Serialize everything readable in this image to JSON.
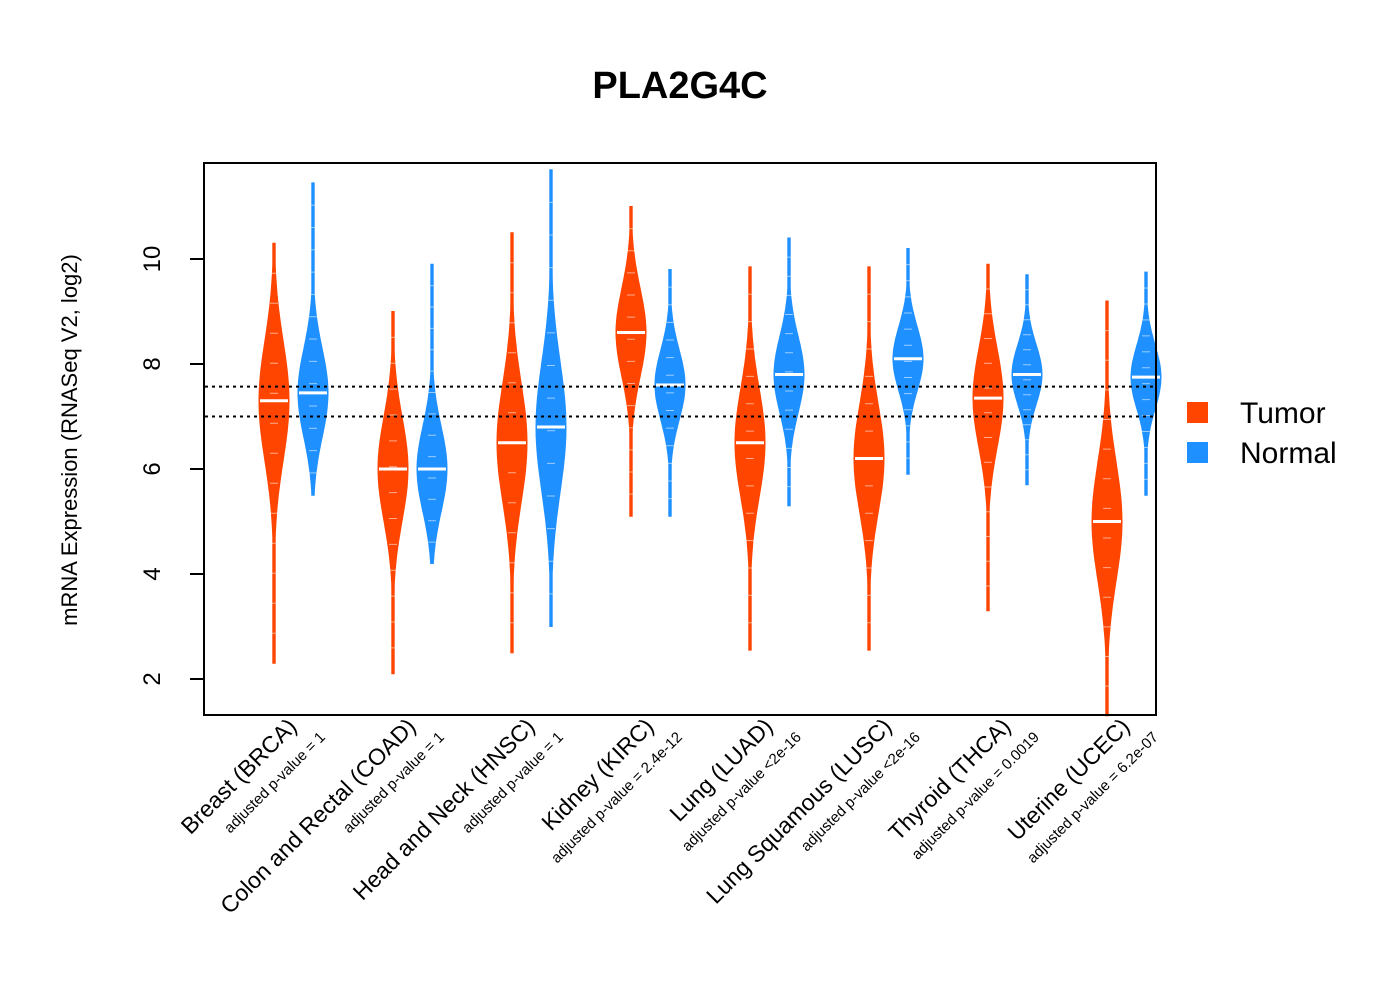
{
  "chart_data": {
    "type": "violin",
    "title": "PLA2G4C",
    "xlabel": "",
    "ylabel": "mRNA Expression (RNASeq V2, log2)",
    "ylim": [
      1.3,
      11.8
    ],
    "yticks": [
      "2",
      "4",
      "6",
      "8",
      "10"
    ],
    "reference_lines": [
      7.0,
      7.57
    ],
    "legend": {
      "position": "right",
      "entries": [
        {
          "name": "Tumor",
          "color": "#FF4500"
        },
        {
          "name": "Normal",
          "color": "#1E90FF"
        }
      ]
    },
    "categories": [
      {
        "label": "Breast (BRCA)",
        "pvalue": "adjusted p-value = 1"
      },
      {
        "label": "Colon and Rectal (COAD)",
        "pvalue": "adjusted p-value = 1"
      },
      {
        "label": "Head and Neck (HNSC)",
        "pvalue": "adjusted p-value = 1"
      },
      {
        "label": "Kidney (KIRC)",
        "pvalue": "adjusted p-value = 2.4e-12"
      },
      {
        "label": "Lung (LUAD)",
        "pvalue": "adjusted p-value <2e-16"
      },
      {
        "label": "Lung Squamous (LUSC)",
        "pvalue": "adjusted p-value <2e-16"
      },
      {
        "label": "Thyroid (THCA)",
        "pvalue": "adjusted p-value = 0.0019"
      },
      {
        "label": "Uterine (UCEC)",
        "pvalue": "adjusted p-value = 6.2e-07"
      }
    ],
    "series": [
      {
        "name": "Tumor",
        "color": "#FF4500",
        "medians": [
          7.3,
          6.0,
          6.5,
          8.6,
          6.5,
          6.2,
          7.35,
          5.0
        ],
        "ranges": [
          [
            2.3,
            10.3
          ],
          [
            2.1,
            9.0
          ],
          [
            2.5,
            10.5
          ],
          [
            5.1,
            11.0
          ],
          [
            2.55,
            9.85
          ],
          [
            2.55,
            9.85
          ],
          [
            3.3,
            9.9
          ],
          [
            1.3,
            9.2
          ]
        ]
      },
      {
        "name": "Normal",
        "color": "#1E90FF",
        "medians": [
          7.45,
          6.0,
          6.8,
          7.6,
          7.8,
          8.1,
          7.8,
          7.75
        ],
        "ranges": [
          [
            5.5,
            11.45
          ],
          [
            4.2,
            9.9
          ],
          [
            3.0,
            11.7
          ],
          [
            5.1,
            9.8
          ],
          [
            5.3,
            10.4
          ],
          [
            5.9,
            10.2
          ],
          [
            5.7,
            9.7
          ],
          [
            5.5,
            9.75
          ]
        ]
      }
    ]
  }
}
